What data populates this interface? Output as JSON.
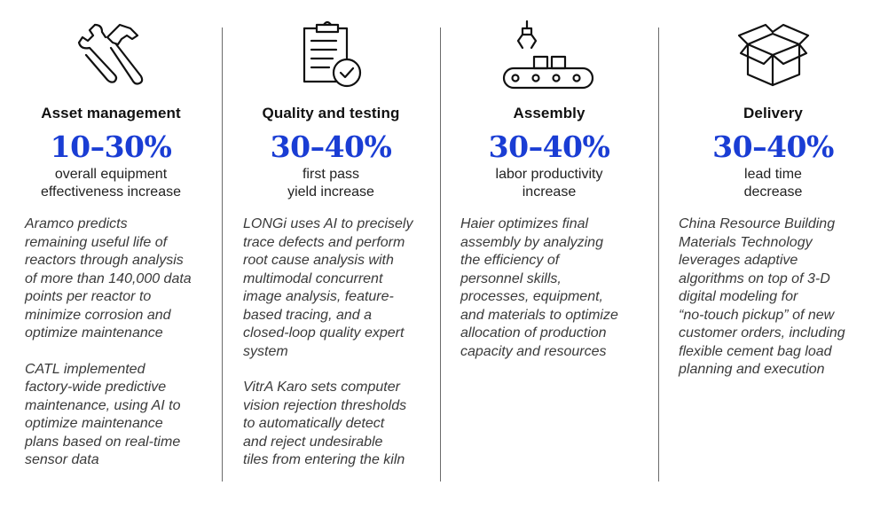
{
  "columns": [
    {
      "icon": "tools-icon",
      "heading": "Asset management",
      "stat": "10–30%",
      "metric_lines": [
        "overall equipment",
        "effectiveness increase"
      ],
      "paragraphs": [
        [
          "Aramco predicts",
          "remaining useful life of",
          "reactors through analysis",
          "of more than 140,000 data",
          "points per reactor to",
          "minimize corrosion and",
          "optimize maintenance"
        ],
        [
          "CATL implemented",
          "factory-wide predictive",
          "maintenance, using AI to",
          "optimize maintenance",
          "plans based on real-time",
          "sensor data"
        ]
      ]
    },
    {
      "icon": "clipboard-check-icon",
      "heading": "Quality and testing",
      "stat": "30–40%",
      "metric_lines": [
        "first pass",
        "yield increase"
      ],
      "paragraphs": [
        [
          "LONGi uses AI to precisely",
          "trace defects and perform",
          "root cause analysis with",
          "multimodal concurrent",
          "image analysis, feature-",
          "based tracing, and a",
          "closed-loop quality expert",
          "system"
        ],
        [
          "VitrA Karo sets computer",
          "vision rejection thresholds",
          "to automatically detect",
          "and reject undesirable",
          "tiles from entering the kiln"
        ]
      ]
    },
    {
      "icon": "assembly-line-icon",
      "heading": "Assembly",
      "stat": "30–40%",
      "metric_lines": [
        "labor productivity",
        "increase"
      ],
      "paragraphs": [
        [
          "Haier optimizes final",
          "assembly by analyzing",
          "the efficiency of",
          "personnel skills,",
          "processes, equipment,",
          "and materials to optimize",
          "allocation of production",
          "capacity and resources"
        ]
      ]
    },
    {
      "icon": "package-box-icon",
      "heading": "Delivery",
      "stat": "30–40%",
      "metric_lines": [
        "lead time",
        "decrease"
      ],
      "paragraphs": [
        [
          "China Resource Building",
          "Materials Technology",
          "leverages adaptive",
          "algorithms on top of 3-D",
          "digital modeling for",
          "“no-touch pickup” of new",
          "customer orders, including",
          "flexible cement bag load",
          "planning and execution"
        ]
      ]
    }
  ],
  "colors": {
    "accent": "#1a3dd4",
    "divider": "#6b6b6b",
    "body_text": "#3a3a3a"
  }
}
